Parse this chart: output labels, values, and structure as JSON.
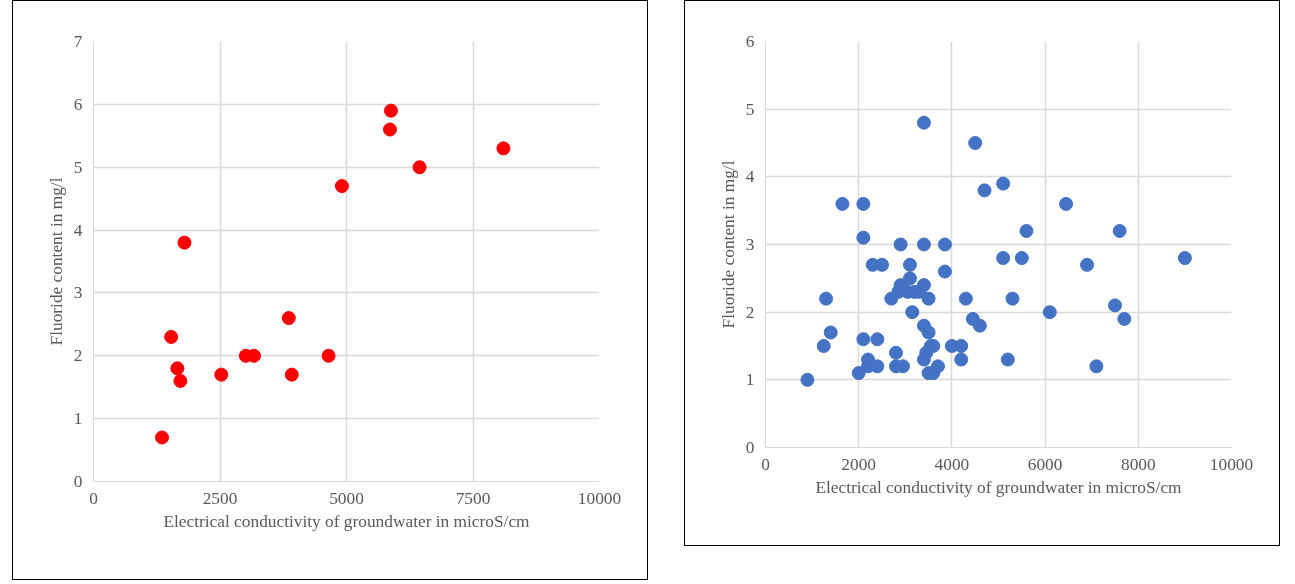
{
  "chart_data": [
    {
      "type": "scatter",
      "xlabel": "Electrical conductivity of groundwater in microS/cm",
      "ylabel": "Fluoride content in mg/l",
      "xlim": [
        0,
        10000
      ],
      "xticks": [
        0,
        2500,
        5000,
        7500,
        10000
      ],
      "ylim": [
        0,
        7
      ],
      "yticks": [
        0,
        1,
        2,
        3,
        4,
        5,
        6,
        7
      ],
      "grid": true,
      "marker": "circle",
      "series": [
        {
          "color": "#ff0000",
          "x": [
            1354,
            1535,
            1657,
            1717,
            1798,
            2525,
            3010,
            3172,
            3859,
            3919,
            4646,
            4909,
            5859,
            5879,
            6444,
            8101
          ],
          "values": [
            0.7,
            2.3,
            1.8,
            1.6,
            3.8,
            1.7,
            2.0,
            2.0,
            2.6,
            1.7,
            2.0,
            4.7,
            5.6,
            5.9,
            5.0,
            5.3
          ]
        }
      ]
    },
    {
      "type": "scatter",
      "xlabel": "Electrical conductivity of groundwater in microS/cm",
      "ylabel": "Fluoride content in mg/l",
      "xlim": [
        0,
        10000
      ],
      "xticks": [
        0,
        2000,
        4000,
        6000,
        8000,
        10000
      ],
      "ylim": [
        0,
        6
      ],
      "yticks": [
        0,
        1,
        2,
        3,
        4,
        5,
        6
      ],
      "grid": true,
      "marker": "circle",
      "series": [
        {
          "color": "#4472c4",
          "x": [
            900,
            1250,
            1300,
            1400,
            1650,
            2000,
            2100,
            2100,
            2100,
            2200,
            2200,
            2300,
            2400,
            2400,
            2500,
            2700,
            2800,
            2800,
            2850,
            2900,
            2900,
            2950,
            3050,
            3100,
            3100,
            3150,
            3200,
            3300,
            3400,
            3400,
            3400,
            3400,
            3400,
            3450,
            3500,
            3500,
            3500,
            3550,
            3600,
            3600,
            3700,
            3850,
            3850,
            4000,
            4200,
            4200,
            4300,
            4450,
            4500,
            4600,
            4700,
            5100,
            5100,
            5200,
            5300,
            5500,
            5600,
            6100,
            6450,
            6900,
            7100,
            7500,
            7600,
            7700,
            9000
          ],
          "values": [
            1.0,
            1.5,
            2.2,
            1.7,
            3.6,
            1.1,
            1.6,
            3.6,
            3.1,
            1.2,
            1.3,
            2.7,
            1.6,
            1.2,
            2.7,
            2.2,
            1.4,
            1.2,
            2.3,
            2.4,
            3.0,
            1.2,
            2.3,
            2.5,
            2.7,
            2.0,
            2.3,
            2.3,
            4.8,
            3.0,
            2.4,
            1.8,
            1.3,
            1.4,
            2.2,
            1.7,
            1.1,
            1.5,
            1.1,
            1.5,
            1.2,
            2.6,
            3.0,
            1.5,
            1.5,
            1.3,
            2.2,
            1.9,
            4.5,
            1.8,
            3.8,
            3.9,
            2.8,
            1.3,
            2.2,
            2.8,
            3.2,
            2.0,
            3.6,
            2.7,
            1.2,
            2.1,
            3.2,
            1.9,
            2.8
          ]
        }
      ]
    }
  ]
}
